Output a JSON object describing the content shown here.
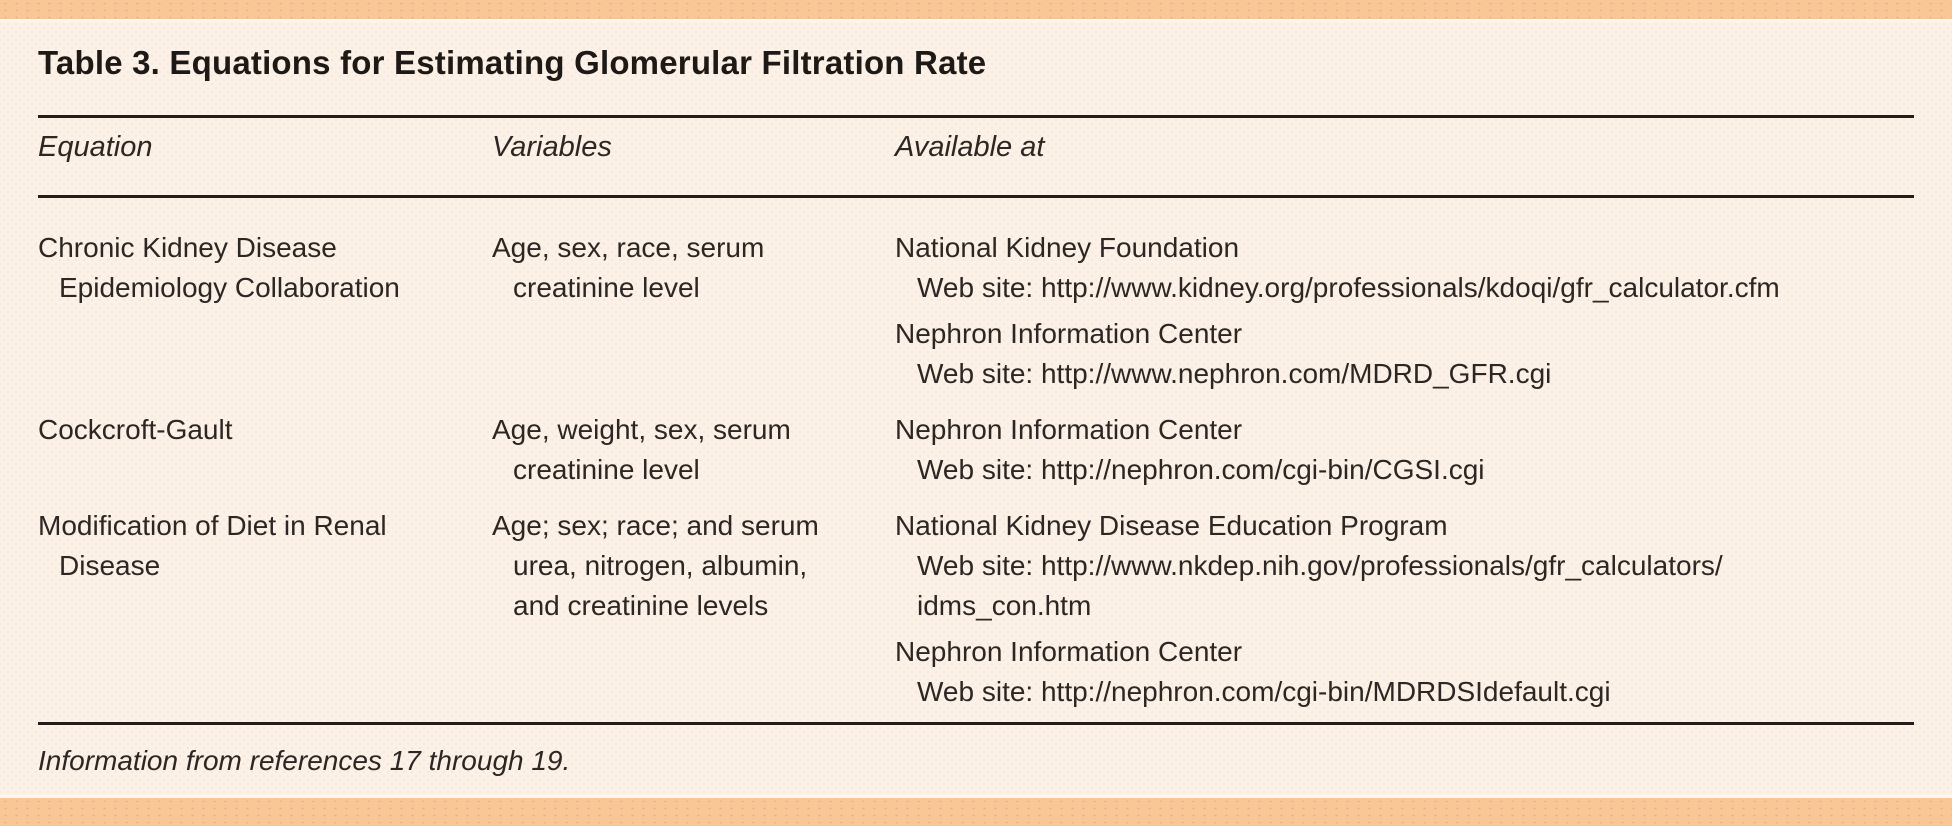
{
  "title": "Table 3. Equations for Estimating Glomerular Filtration Rate",
  "colors": {
    "page_background": "#fbf1e6",
    "border_band": "#f8c795",
    "rule": "#221d1a",
    "title_text": "#1d1916",
    "body_text": "#2c2724"
  },
  "table": {
    "headers": {
      "equation": "Equation",
      "variables": "Variables",
      "available": "Available at"
    },
    "rows": [
      {
        "equation": "Chronic Kidney Disease\nEpidemiology Collaboration",
        "variables": "Age, sex, race, serum\ncreatinine level",
        "available": [
          {
            "name": "National Kidney Foundation",
            "url": "Web site: http://www.kidney.org/professionals/kdoqi/gfr_calculator.cfm"
          },
          {
            "name": "Nephron Information Center",
            "url": "Web site: http://www.nephron.com/MDRD_GFR.cgi"
          }
        ]
      },
      {
        "equation": "Cockcroft-Gault",
        "variables": "Age, weight, sex, serum\ncreatinine level",
        "available": [
          {
            "name": "Nephron Information Center",
            "url": "Web site: http://nephron.com/cgi-bin/CGSI.cgi"
          }
        ]
      },
      {
        "equation": "Modification of Diet in Renal\nDisease",
        "variables": "Age; sex; race; and serum\nurea, nitrogen, albumin,\nand creatinine levels",
        "available": [
          {
            "name": "National Kidney Disease Education Program",
            "url": "Web site: http://www.nkdep.nih.gov/professionals/gfr_calculators/\nidms_con.htm"
          },
          {
            "name": "Nephron Information Center",
            "url": "Web site: http://nephron.com/cgi-bin/MDRDSIdefault.cgi"
          }
        ]
      }
    ]
  },
  "footnote": "Information from references 17 through 19."
}
